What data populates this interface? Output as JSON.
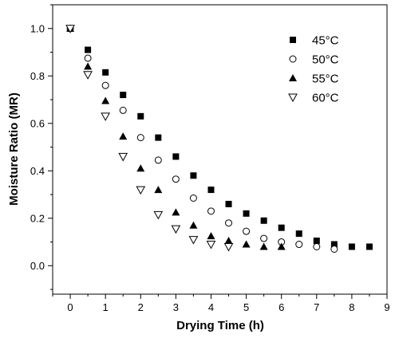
{
  "chart_data": {
    "type": "scatter",
    "xlabel": "Drying Time (h)",
    "ylabel": "Moisture Ratio (MR)",
    "xlim": [
      -0.5,
      9
    ],
    "ylim": [
      -0.12,
      1.1
    ],
    "x_ticks": [
      "0",
      "1",
      "2",
      "3",
      "4",
      "5",
      "6",
      "7",
      "8",
      "9"
    ],
    "y_ticks": [
      "0.0",
      "0.2",
      "0.4",
      "0.6",
      "0.8",
      "1.0"
    ],
    "x_tick_values": [
      0,
      1,
      2,
      3,
      4,
      5,
      6,
      7,
      8,
      9
    ],
    "y_tick_values": [
      0.0,
      0.2,
      0.4,
      0.6,
      0.8,
      1.0
    ],
    "grid": false,
    "legend_position": "top-right",
    "series": [
      {
        "name": "45°C",
        "marker": "filled-square",
        "x": [
          0,
          0.5,
          1,
          1.5,
          2,
          2.5,
          3,
          3.5,
          4,
          4.5,
          5,
          5.5,
          6,
          6.5,
          7,
          7.5,
          8,
          8.5
        ],
        "y": [
          1.0,
          0.91,
          0.815,
          0.72,
          0.63,
          0.54,
          0.46,
          0.38,
          0.32,
          0.26,
          0.22,
          0.19,
          0.16,
          0.135,
          0.105,
          0.09,
          0.08,
          0.08
        ]
      },
      {
        "name": "50°C",
        "marker": "open-circle",
        "x": [
          0,
          0.5,
          1,
          1.5,
          2,
          2.5,
          3,
          3.5,
          4,
          4.5,
          5,
          5.5,
          6,
          6.5,
          7,
          7.5
        ],
        "y": [
          1.0,
          0.875,
          0.76,
          0.655,
          0.54,
          0.445,
          0.365,
          0.285,
          0.23,
          0.18,
          0.145,
          0.115,
          0.1,
          0.09,
          0.08,
          0.07
        ]
      },
      {
        "name": "55°C",
        "marker": "filled-triangle",
        "x": [
          0,
          0.5,
          1,
          1.5,
          2,
          2.5,
          3,
          3.5,
          4,
          4.5,
          5,
          5.5,
          6
        ],
        "y": [
          1.0,
          0.84,
          0.695,
          0.545,
          0.41,
          0.32,
          0.225,
          0.17,
          0.125,
          0.105,
          0.09,
          0.08,
          0.08
        ]
      },
      {
        "name": "60°C",
        "marker": "open-down-triangle",
        "x": [
          0,
          0.5,
          1,
          1.5,
          2,
          2.5,
          3,
          3.5,
          4,
          4.5
        ],
        "y": [
          1.0,
          0.805,
          0.63,
          0.46,
          0.32,
          0.215,
          0.155,
          0.11,
          0.09,
          0.08
        ]
      }
    ]
  }
}
